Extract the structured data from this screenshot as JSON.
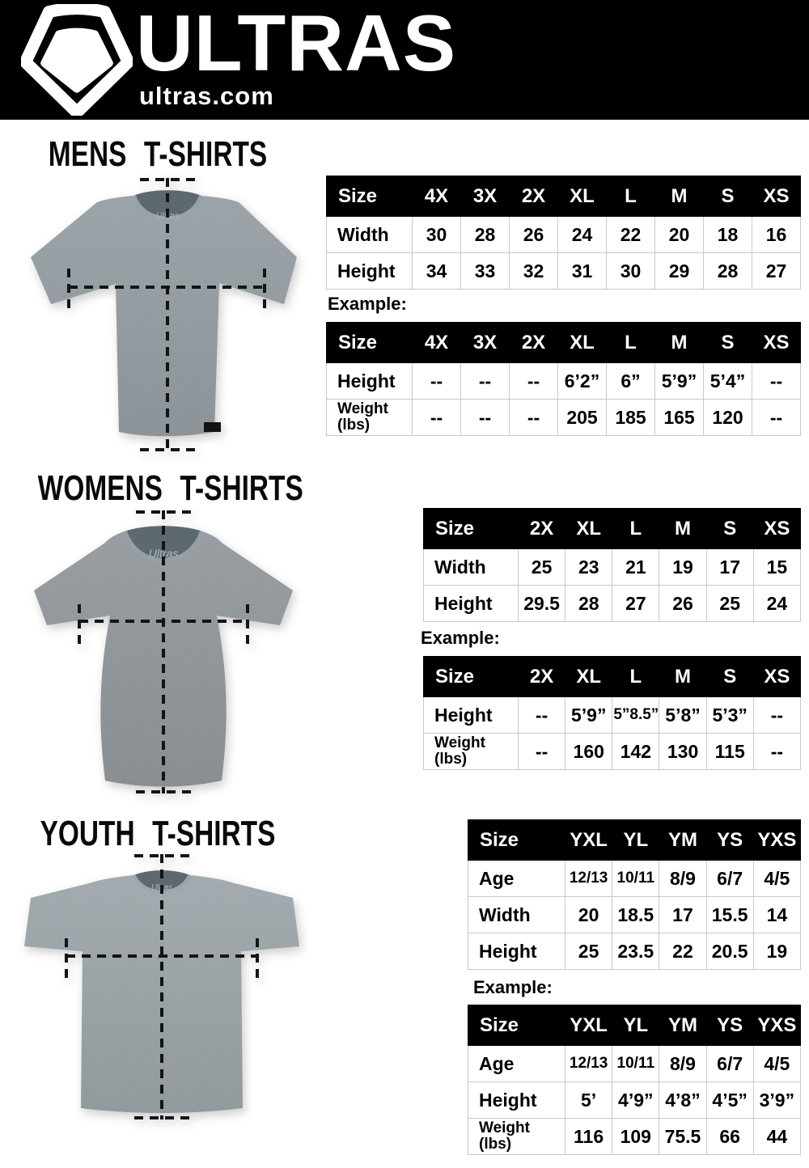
{
  "header": {
    "brand": "ULTRAS",
    "site": "ultras.com",
    "logo_icon": "pentagon-shield-icon"
  },
  "colors": {
    "page_bg": "#ffffff",
    "header_bg": "#000000",
    "brand_text": "#ffffff",
    "table_header_bg": "#000000",
    "table_header_text": "#ffffff",
    "table_border": "#c9c9c9",
    "body_text": "#000000",
    "shirt_mens": "#8d979d",
    "shirt_womens": "#899095",
    "shirt_youth": "#929ca1",
    "shirt_neck": "#5e686f",
    "measure_line": "#141414"
  },
  "sections": [
    {
      "key": "mens",
      "title": "MENS T-SHIRTS",
      "shirt": {
        "collar_label": "Ultras"
      },
      "size_table": {
        "columns": [
          "Size",
          "4X",
          "3X",
          "2X",
          "XL",
          "L",
          "M",
          "S",
          "XS"
        ],
        "rows": [
          {
            "label": "Width",
            "sublabel": "",
            "values": [
              "30",
              "28",
              "26",
              "24",
              "22",
              "20",
              "18",
              "16"
            ]
          },
          {
            "label": "Height",
            "sublabel": "",
            "values": [
              "34",
              "33",
              "32",
              "31",
              "30",
              "29",
              "28",
              "27"
            ]
          }
        ]
      },
      "example_label": "Example:",
      "example_table": {
        "columns": [
          "Size",
          "4X",
          "3X",
          "2X",
          "XL",
          "L",
          "M",
          "S",
          "XS"
        ],
        "rows": [
          {
            "label": "Height",
            "sublabel": "",
            "values": [
              "--",
              "--",
              "--",
              "6’2”",
              "6”",
              "5’9”",
              "5’4”",
              "--"
            ]
          },
          {
            "label": "Weight",
            "sublabel": "(lbs)",
            "values": [
              "--",
              "--",
              "--",
              "205",
              "185",
              "165",
              "120",
              "--"
            ]
          }
        ]
      }
    },
    {
      "key": "womens",
      "title": "WOMENS T-SHIRTS",
      "shirt": {
        "collar_label": "Ultras"
      },
      "size_table": {
        "columns": [
          "Size",
          "2X",
          "XL",
          "L",
          "M",
          "S",
          "XS"
        ],
        "rows": [
          {
            "label": "Width",
            "sublabel": "",
            "values": [
              "25",
              "23",
              "21",
              "19",
              "17",
              "15"
            ]
          },
          {
            "label": "Height",
            "sublabel": "",
            "values": [
              "29.5",
              "28",
              "27",
              "26",
              "25",
              "24"
            ]
          }
        ]
      },
      "example_label": "Example:",
      "example_table": {
        "columns": [
          "Size",
          "2X",
          "XL",
          "L",
          "M",
          "S",
          "XS"
        ],
        "rows": [
          {
            "label": "Height",
            "sublabel": "",
            "values": [
              "--",
              "5’9”",
              "5”8.5”",
              "5’8”",
              "5’3”",
              "--"
            ]
          },
          {
            "label": "Weight",
            "sublabel": "(lbs)",
            "values": [
              "--",
              "160",
              "142",
              "130",
              "115",
              "--"
            ]
          }
        ]
      }
    },
    {
      "key": "youth",
      "title": "YOUTH T-SHIRTS",
      "shirt": {
        "collar_label": "Ultras"
      },
      "size_table": {
        "columns": [
          "Size",
          "YXL",
          "YL",
          "YM",
          "YS",
          "YXS"
        ],
        "rows": [
          {
            "label": "Age",
            "sublabel": "",
            "values": [
              "12/13",
              "10/11",
              "8/9",
              "6/7",
              "4/5"
            ]
          },
          {
            "label": "Width",
            "sublabel": "",
            "values": [
              "20",
              "18.5",
              "17",
              "15.5",
              "14"
            ]
          },
          {
            "label": "Height",
            "sublabel": "",
            "values": [
              "25",
              "23.5",
              "22",
              "20.5",
              "19"
            ]
          }
        ]
      },
      "example_label": "Example:",
      "example_table": {
        "columns": [
          "Size",
          "YXL",
          "YL",
          "YM",
          "YS",
          "YXS"
        ],
        "rows": [
          {
            "label": "Age",
            "sublabel": "",
            "values": [
              "12/13",
              "10/11",
              "8/9",
              "6/7",
              "4/5"
            ]
          },
          {
            "label": "Height",
            "sublabel": "",
            "values": [
              "5’",
              "4’9”",
              "4’8”",
              "4’5”",
              "3’9”"
            ]
          },
          {
            "label": "Weight",
            "sublabel": "(lbs)",
            "values": [
              "116",
              "109",
              "75.5",
              "66",
              "44"
            ]
          }
        ]
      }
    }
  ]
}
